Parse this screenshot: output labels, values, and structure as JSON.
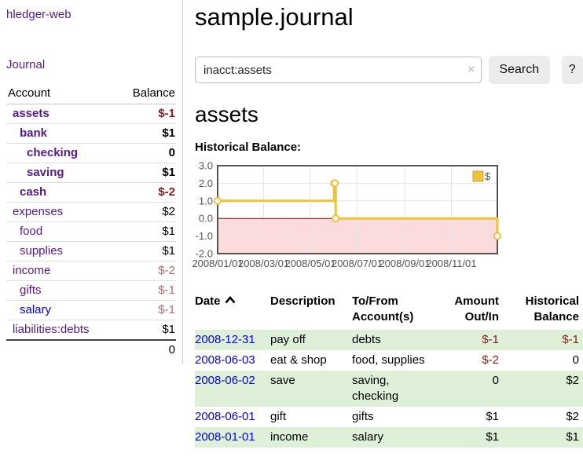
{
  "app": {
    "brand": "hledger-web",
    "nav_journal": "Journal"
  },
  "sidebar": {
    "header": {
      "account": "Account",
      "balance": "Balance"
    },
    "accounts": [
      {
        "label": "assets",
        "balance": "$-1"
      },
      {
        "label": "bank",
        "balance": "$1"
      },
      {
        "label": "checking",
        "balance": "0"
      },
      {
        "label": "saving",
        "balance": "$1"
      },
      {
        "label": "cash",
        "balance": "$-2"
      },
      {
        "label": "expenses",
        "balance": "$2"
      },
      {
        "label": "food",
        "balance": "$1"
      },
      {
        "label": "supplies",
        "balance": "$1"
      },
      {
        "label": "income",
        "balance": "$-2"
      },
      {
        "label": "gifts",
        "balance": "$-1"
      },
      {
        "label": "salary",
        "balance": "$-1"
      },
      {
        "label": "liabilities:debts",
        "balance": "$1"
      }
    ],
    "total": "0"
  },
  "main": {
    "title": "sample.journal",
    "search": {
      "value": "inacct:assets",
      "clear_icon": "×",
      "button": "Search",
      "help_button": "?"
    },
    "heading": "assets",
    "chart_label": "Historical Balance:"
  },
  "chart_data": {
    "type": "line",
    "step": true,
    "title": "Historical Balance",
    "series": [
      {
        "name": "$",
        "points": [
          [
            "2008-01-01",
            1
          ],
          [
            "2008-06-01",
            2
          ],
          [
            "2008-06-02",
            2
          ],
          [
            "2008-06-03",
            0
          ],
          [
            "2008-12-31",
            -1
          ]
        ]
      }
    ],
    "x_ticks": [
      "2008/01/01",
      "2008/03/01",
      "2008/05/01",
      "2008/07/01",
      "2008/09/01",
      "2008/11/01"
    ],
    "y_ticks": [
      3.0,
      2.0,
      1.0,
      0.0,
      -1.0,
      -2.0
    ],
    "ylim": [
      -2,
      3
    ],
    "xlim": [
      "2008-01-01",
      "2008-12-31"
    ],
    "grid": true,
    "legend": {
      "label": "$",
      "position": "top-right"
    },
    "line_color": "#edc240",
    "marker_fill": "#ffffff",
    "zero_line_color": "#8b0000",
    "negative_region_fill": "#fbdbdb"
  },
  "table": {
    "headers": {
      "date": "Date",
      "description": "Description",
      "tofrom": "To/From Account(s)",
      "amount": "Amount Out/In",
      "historical": "Historical Balance"
    },
    "rows": [
      {
        "date": "2008-12-31",
        "description": "pay off",
        "accounts": "debts",
        "amount": "$-1",
        "historical": "$-1"
      },
      {
        "date": "2008-06-03",
        "description": "eat & shop",
        "accounts": "food, supplies",
        "amount": "$-2",
        "historical": "0"
      },
      {
        "date": "2008-06-02",
        "description": "save",
        "accounts": "saving, checking",
        "amount": "0",
        "historical": "$2"
      },
      {
        "date": "2008-06-01",
        "description": "gift",
        "accounts": "gifts",
        "amount": "$1",
        "historical": "$2"
      },
      {
        "date": "2008-01-01",
        "description": "income",
        "accounts": "salary",
        "amount": "$1",
        "historical": "$1"
      }
    ]
  },
  "colors": {
    "link_purple": "#551a8b",
    "link_blue": "#0000ee",
    "negative_dark": "#8b1a1a",
    "negative_light": "#b06e6e",
    "row_green": "#dff0d8",
    "accent_gold": "#edc240"
  }
}
